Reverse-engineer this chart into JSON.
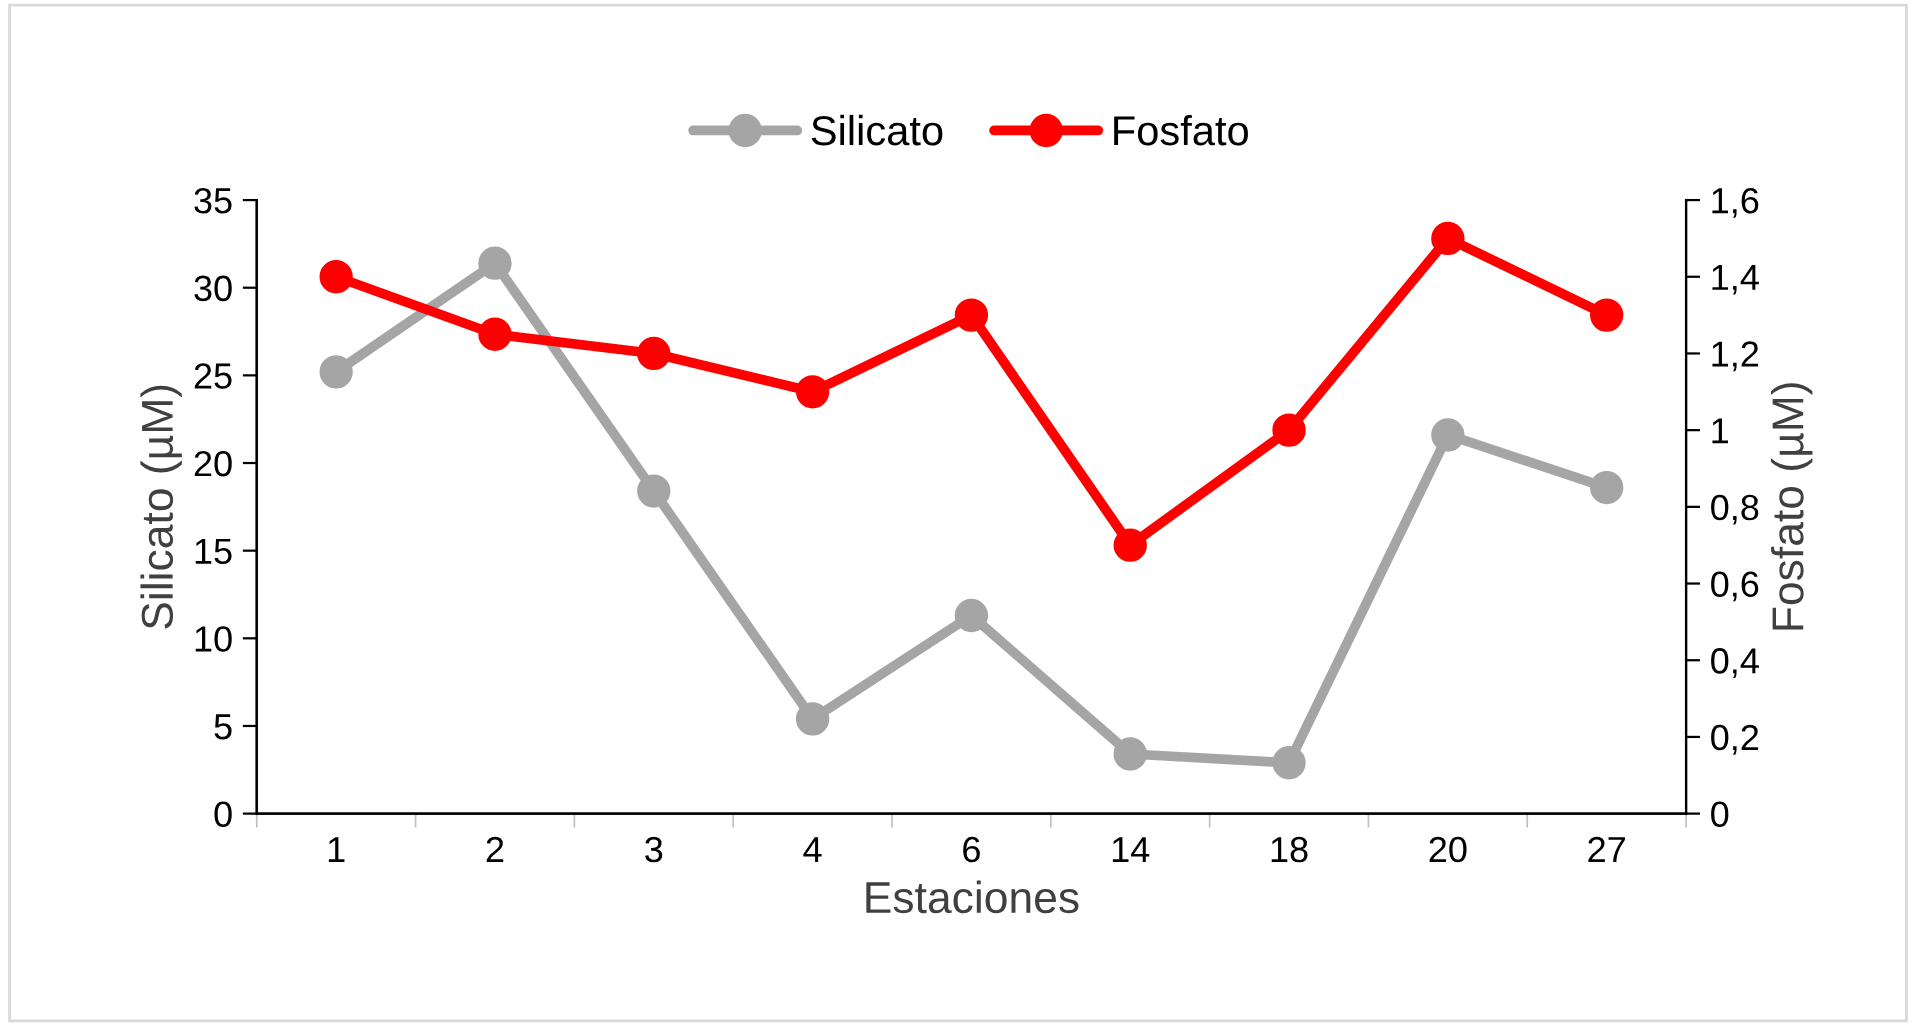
{
  "chart_data": {
    "type": "line",
    "xlabel": "Estaciones",
    "ylabel": "Silicato (µM)",
    "y2label": "Fosfato (µM)",
    "categories": [
      "1",
      "2",
      "3",
      "4",
      "6",
      "14",
      "18",
      "20",
      "27"
    ],
    "series": [
      {
        "name": "Silicato",
        "color": "#a5a5a5",
        "values": [
          25.2,
          31.4,
          18.4,
          5.4,
          11.3,
          3.4,
          2.9,
          21.6,
          18.6
        ]
      },
      {
        "name": "Fosfato",
        "color": "#ff0000",
        "axis": "y2",
        "values": [
          1.4,
          1.25,
          1.2,
          1.1,
          1.3,
          0.7,
          1.0,
          1.5,
          1.3
        ]
      }
    ],
    "ylim": [
      0,
      35
    ],
    "yticks": [
      0,
      5,
      10,
      15,
      20,
      25,
      30,
      35
    ],
    "y2lim": [
      0,
      1.6
    ],
    "y2ticks": [
      0,
      {
        "value": 0.2,
        "label": "0,2"
      },
      {
        "value": 0.4,
        "label": "0,4"
      },
      {
        "value": 0.6,
        "label": "0,6"
      },
      {
        "value": 0.8,
        "label": "0,8"
      },
      1,
      {
        "value": 1.2,
        "label": "1,2"
      },
      {
        "value": 1.4,
        "label": "1,4"
      },
      {
        "value": 1.6,
        "label": "1,6"
      }
    ],
    "marker": "circle",
    "line_style": "solid",
    "grid": false,
    "legend": "top"
  }
}
